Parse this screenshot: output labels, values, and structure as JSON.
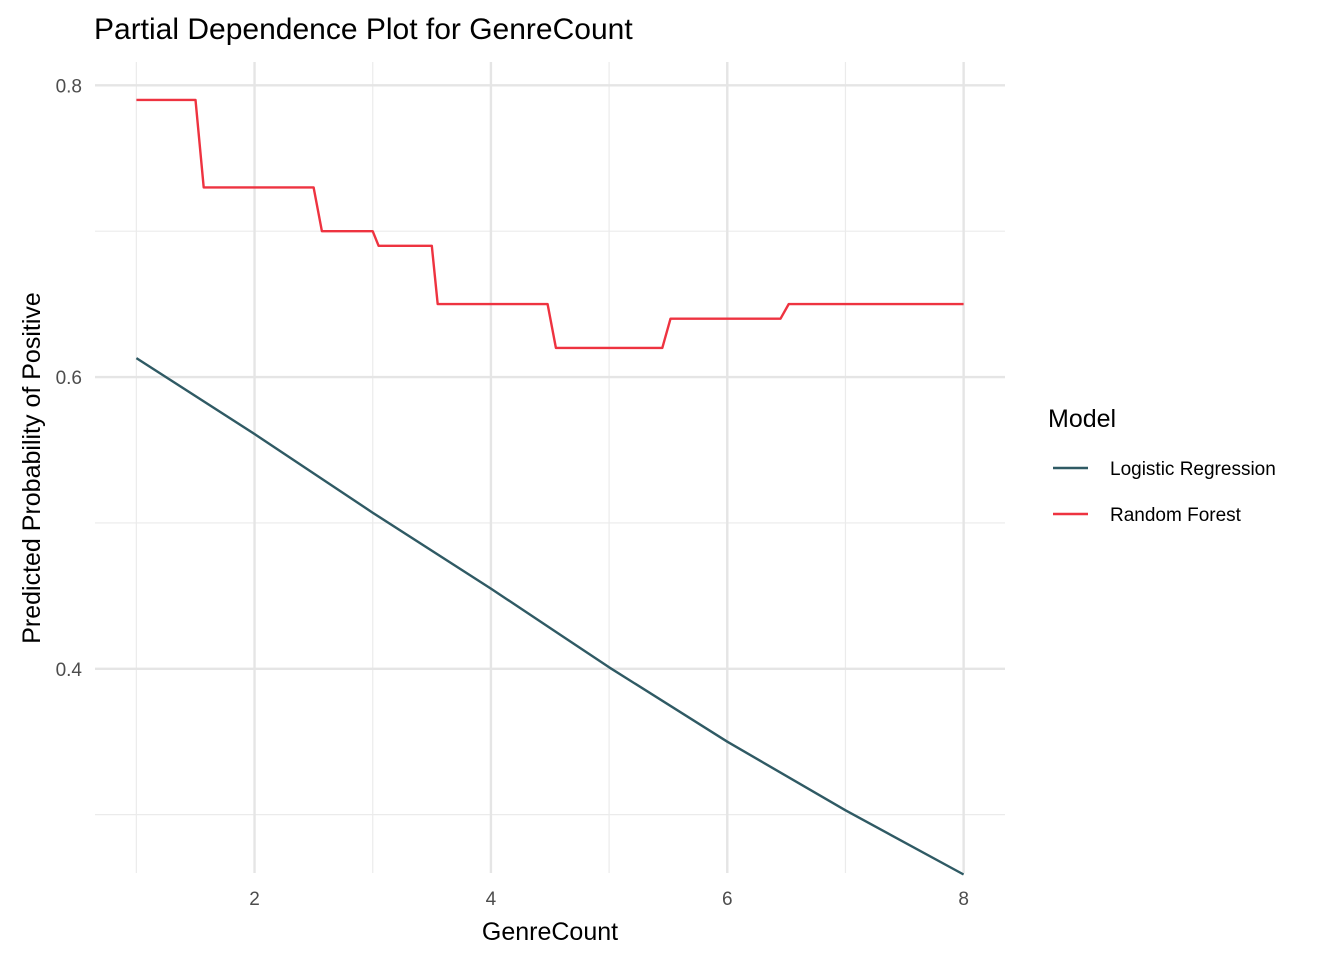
{
  "chart_data": {
    "type": "line",
    "title": "Partial Dependence Plot for GenreCount",
    "xlabel": "GenreCount",
    "ylabel": "Predicted Probability of Positive",
    "xlim": [
      0.65,
      8.35
    ],
    "ylim": [
      0.26,
      0.816
    ],
    "x_ticks": [
      2,
      4,
      6,
      8
    ],
    "x_tick_labels": [
      "2",
      "4",
      "6",
      "8"
    ],
    "y_ticks": [
      0.4,
      0.6,
      0.8
    ],
    "y_tick_labels": [
      "0.4",
      "0.6",
      "0.8"
    ],
    "grid": true,
    "legend": {
      "title": "Model",
      "position": "right"
    },
    "series": [
      {
        "name": "Logistic Regression",
        "color": "#2F5A64",
        "x": [
          1,
          2,
          3,
          4,
          5,
          6,
          7,
          8
        ],
        "y": [
          0.613,
          0.561,
          0.507,
          0.455,
          0.401,
          0.35,
          0.303,
          0.259
        ]
      },
      {
        "name": "Random Forest",
        "color": "#EE3340",
        "x": [
          1,
          1.5,
          1.57,
          2.5,
          2.57,
          3.0,
          3.05,
          3.5,
          3.55,
          4.48,
          4.55,
          5.45,
          5.52,
          6.45,
          6.52,
          8
        ],
        "y": [
          0.79,
          0.79,
          0.73,
          0.73,
          0.7,
          0.7,
          0.69,
          0.69,
          0.65,
          0.65,
          0.62,
          0.62,
          0.64,
          0.64,
          0.65,
          0.65
        ]
      }
    ]
  }
}
